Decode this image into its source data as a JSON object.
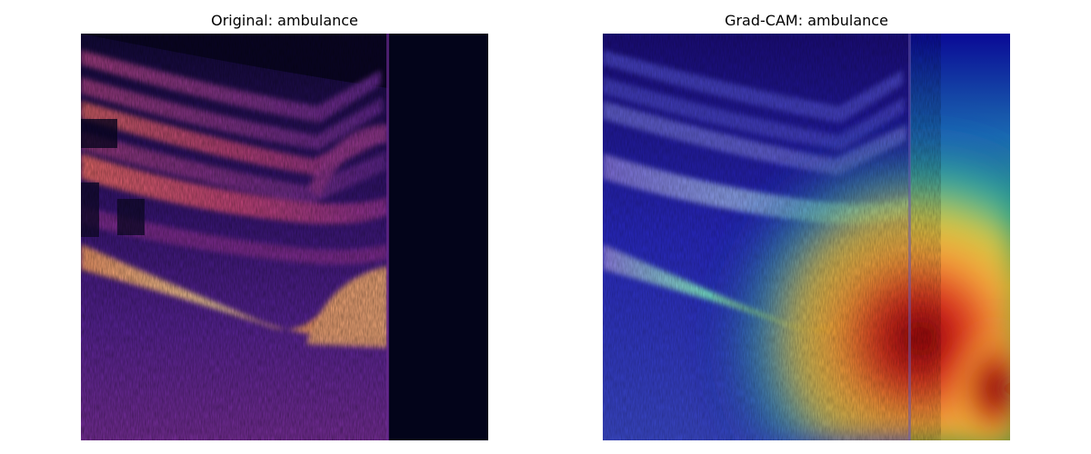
{
  "figure": {
    "panels": [
      {
        "title": "Original: ambulance",
        "colormap": "magma"
      },
      {
        "title": "Grad-CAM: ambulance",
        "colormap": "jet-overlay"
      }
    ]
  },
  "colors": {
    "background": "#ffffff",
    "spectrogram_dark": "#03041a",
    "spectrogram_purple": "#4a1a8c",
    "spectrogram_orange": "#f0804f",
    "spectrogram_light": "#fbd49a",
    "cam_blue": "#1414c8",
    "cam_cyan": "#3ad6c8",
    "cam_yellow": "#f4d23c",
    "cam_red": "#d6241c",
    "cam_darkred": "#7a0006"
  }
}
